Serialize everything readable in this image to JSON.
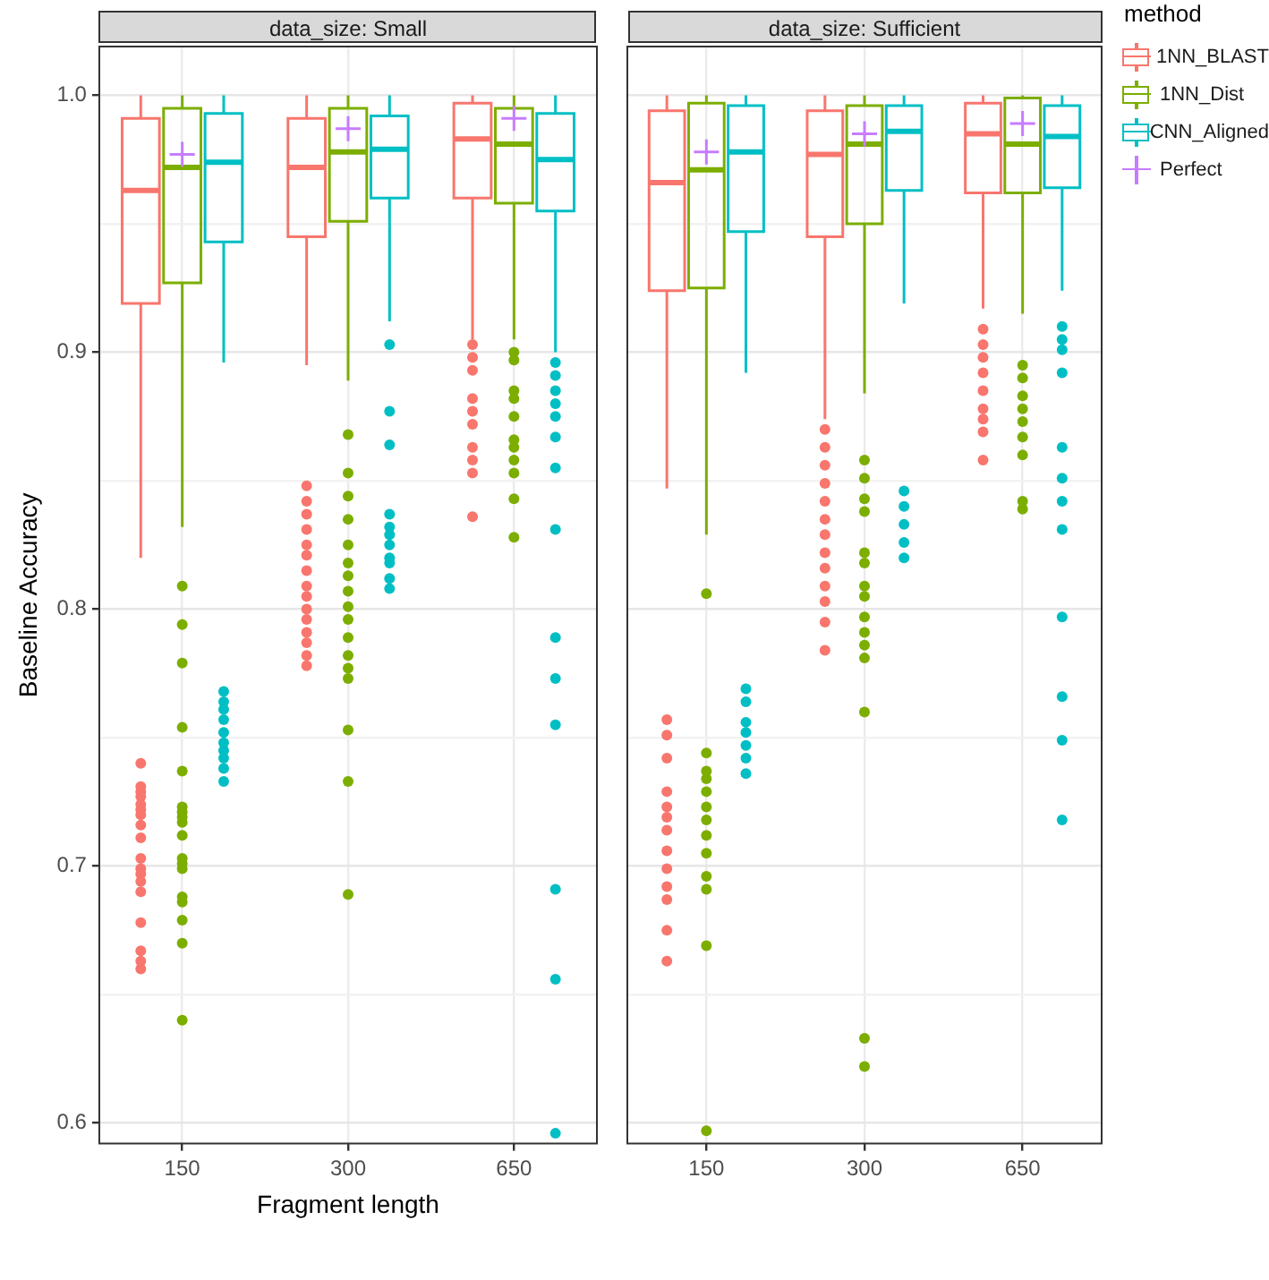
{
  "chart_data": [
    {
      "type": "box",
      "title": "data_size: Small",
      "xlabel": "Fragment length",
      "ylabel": "Baseline Accuracy",
      "categories": [
        "150",
        "300",
        "650"
      ],
      "ylim": [
        0.592,
        1.019
      ],
      "yticks": [
        0.6,
        {
          "value": 0.65,
          "label": null
        },
        0.7,
        {
          "value": 0.75,
          "label": null
        },
        0.8,
        {
          "value": 0.85,
          "label": null
        },
        0.9,
        {
          "value": 0.95,
          "label": null
        },
        {
          "value": 1,
          "label": "1.0"
        }
      ],
      "grid": true,
      "legend": false,
      "series": [
        {
          "color": "#f8766d",
          "boxes": [
            {
              "low": 0.82,
              "q1": 0.919,
              "median": 0.963,
              "q3": 0.991,
              "high": 1.0,
              "outliers": [
                0.74,
                0.731,
                0.729,
                0.727,
                0.724,
                0.722,
                0.72,
                0.716,
                0.711,
                0.703,
                0.699,
                0.697,
                0.694,
                0.69,
                0.678,
                0.667,
                0.663,
                0.66
              ]
            },
            {
              "low": 0.895,
              "q1": 0.945,
              "median": 0.972,
              "q3": 0.991,
              "high": 1.0,
              "outliers": [
                0.848,
                0.842,
                0.837,
                0.831,
                0.825,
                0.821,
                0.815,
                0.809,
                0.805,
                0.8,
                0.796,
                0.791,
                0.787,
                0.782,
                0.778
              ]
            },
            {
              "low": 0.905,
              "q1": 0.96,
              "median": 0.983,
              "q3": 0.997,
              "high": 1.0,
              "outliers": [
                0.903,
                0.898,
                0.893,
                0.882,
                0.877,
                0.872,
                0.863,
                0.858,
                0.853,
                0.836
              ]
            }
          ]
        },
        {
          "color": "#7cae00",
          "boxes": [
            {
              "low": 0.832,
              "q1": 0.927,
              "median": 0.972,
              "q3": 0.995,
              "high": 1.0,
              "outliers": [
                0.809,
                0.794,
                0.779,
                0.754,
                0.737,
                0.723,
                0.721,
                0.719,
                0.717,
                0.712,
                0.703,
                0.701,
                0.699,
                0.688,
                0.686,
                0.679,
                0.67,
                0.64
              ]
            },
            {
              "low": 0.889,
              "q1": 0.951,
              "median": 0.978,
              "q3": 0.995,
              "high": 1.0,
              "outliers": [
                0.868,
                0.853,
                0.844,
                0.835,
                0.825,
                0.818,
                0.813,
                0.807,
                0.801,
                0.796,
                0.789,
                0.782,
                0.777,
                0.773,
                0.753,
                0.733,
                0.689
              ]
            },
            {
              "low": 0.905,
              "q1": 0.958,
              "median": 0.981,
              "q3": 0.995,
              "high": 1.0,
              "outliers": [
                0.9,
                0.897,
                0.885,
                0.882,
                0.875,
                0.866,
                0.863,
                0.858,
                0.853,
                0.843,
                0.828
              ]
            }
          ]
        },
        {
          "color": "#00bfc4",
          "boxes": [
            {
              "low": 0.896,
              "q1": 0.943,
              "median": 0.974,
              "q3": 0.993,
              "high": 1.0,
              "outliers": [
                0.768,
                0.764,
                0.761,
                0.757,
                0.752,
                0.748,
                0.745,
                0.742,
                0.738,
                0.733
              ]
            },
            {
              "low": 0.912,
              "q1": 0.96,
              "median": 0.979,
              "q3": 0.992,
              "high": 1.0,
              "outliers": [
                0.903,
                0.877,
                0.864,
                0.837,
                0.832,
                0.829,
                0.825,
                0.82,
                0.818,
                0.812,
                0.808
              ]
            },
            {
              "low": 0.9,
              "q1": 0.955,
              "median": 0.975,
              "q3": 0.993,
              "high": 1.0,
              "outliers": [
                0.896,
                0.891,
                0.885,
                0.88,
                0.875,
                0.867,
                0.855,
                0.831,
                0.789,
                0.773,
                0.755,
                0.691,
                0.656,
                0.596
              ]
            }
          ]
        },
        {
          "type": "scatter",
          "marker": "cross",
          "color": "#c77cff",
          "x": [
            "150",
            "300",
            "650"
          ],
          "values": [
            0.977,
            0.987,
            0.991
          ]
        }
      ]
    },
    {
      "type": "box",
      "title": "data_size: Sufficient",
      "categories": [
        "150",
        "300",
        "650"
      ],
      "ylim": [
        0.592,
        1.019
      ],
      "yticks": [
        0.6,
        {
          "value": 0.65,
          "label": null
        },
        0.7,
        {
          "value": 0.75,
          "label": null
        },
        0.8,
        {
          "value": 0.85,
          "label": null
        },
        0.9,
        {
          "value": 0.95,
          "label": null
        },
        1
      ],
      "grid": true,
      "tick_labels": "x",
      "legend": "right",
      "legend_title": "method",
      "series": [
        {
          "name": "1NN_BLAST",
          "color": "#f8766d",
          "boxes": [
            {
              "low": 0.847,
              "q1": 0.924,
              "median": 0.966,
              "q3": 0.994,
              "high": 1.0,
              "outliers": [
                0.757,
                0.751,
                0.742,
                0.729,
                0.723,
                0.719,
                0.714,
                0.706,
                0.699,
                0.692,
                0.687,
                0.675,
                0.663
              ]
            },
            {
              "low": 0.874,
              "q1": 0.945,
              "median": 0.977,
              "q3": 0.994,
              "high": 1.0,
              "outliers": [
                0.87,
                0.863,
                0.856,
                0.849,
                0.842,
                0.835,
                0.829,
                0.822,
                0.816,
                0.809,
                0.803,
                0.795,
                0.784
              ]
            },
            {
              "low": 0.917,
              "q1": 0.962,
              "median": 0.985,
              "q3": 0.997,
              "high": 1.0,
              "outliers": [
                0.909,
                0.903,
                0.898,
                0.892,
                0.885,
                0.878,
                0.874,
                0.869,
                0.858
              ]
            }
          ]
        },
        {
          "name": "1NN_Dist",
          "color": "#7cae00",
          "boxes": [
            {
              "low": 0.829,
              "q1": 0.925,
              "median": 0.971,
              "q3": 0.997,
              "high": 1.0,
              "outliers": [
                0.806,
                0.744,
                0.737,
                0.734,
                0.729,
                0.723,
                0.718,
                0.712,
                0.705,
                0.696,
                0.691,
                0.669,
                0.597
              ]
            },
            {
              "low": 0.884,
              "q1": 0.95,
              "median": 0.981,
              "q3": 0.996,
              "high": 1.0,
              "outliers": [
                0.858,
                0.851,
                0.843,
                0.838,
                0.822,
                0.818,
                0.809,
                0.805,
                0.797,
                0.791,
                0.786,
                0.781,
                0.76,
                0.633,
                0.622
              ]
            },
            {
              "low": 0.915,
              "q1": 0.962,
              "median": 0.981,
              "q3": 0.999,
              "high": 1.0,
              "outliers": [
                0.895,
                0.89,
                0.883,
                0.878,
                0.873,
                0.867,
                0.86,
                0.842,
                0.839
              ]
            }
          ]
        },
        {
          "name": "CNN_Aligned",
          "color": "#00bfc4",
          "boxes": [
            {
              "low": 0.892,
              "q1": 0.947,
              "median": 0.978,
              "q3": 0.996,
              "high": 1.0,
              "outliers": [
                0.769,
                0.764,
                0.756,
                0.752,
                0.747,
                0.742,
                0.736
              ]
            },
            {
              "low": 0.919,
              "q1": 0.963,
              "median": 0.986,
              "q3": 0.996,
              "high": 1.0,
              "outliers": [
                0.846,
                0.84,
                0.833,
                0.826,
                0.82
              ]
            },
            {
              "low": 0.924,
              "q1": 0.964,
              "median": 0.984,
              "q3": 0.996,
              "high": 1.0,
              "outliers": [
                0.91,
                0.905,
                0.901,
                0.892,
                0.863,
                0.851,
                0.842,
                0.831,
                0.797,
                0.766,
                0.749,
                0.718
              ]
            }
          ]
        },
        {
          "name": "Perfect",
          "type": "scatter",
          "marker": "cross",
          "color": "#c77cff",
          "x": [
            "150",
            "300",
            "650"
          ],
          "values": [
            0.978,
            0.985,
            0.989
          ]
        }
      ]
    }
  ]
}
